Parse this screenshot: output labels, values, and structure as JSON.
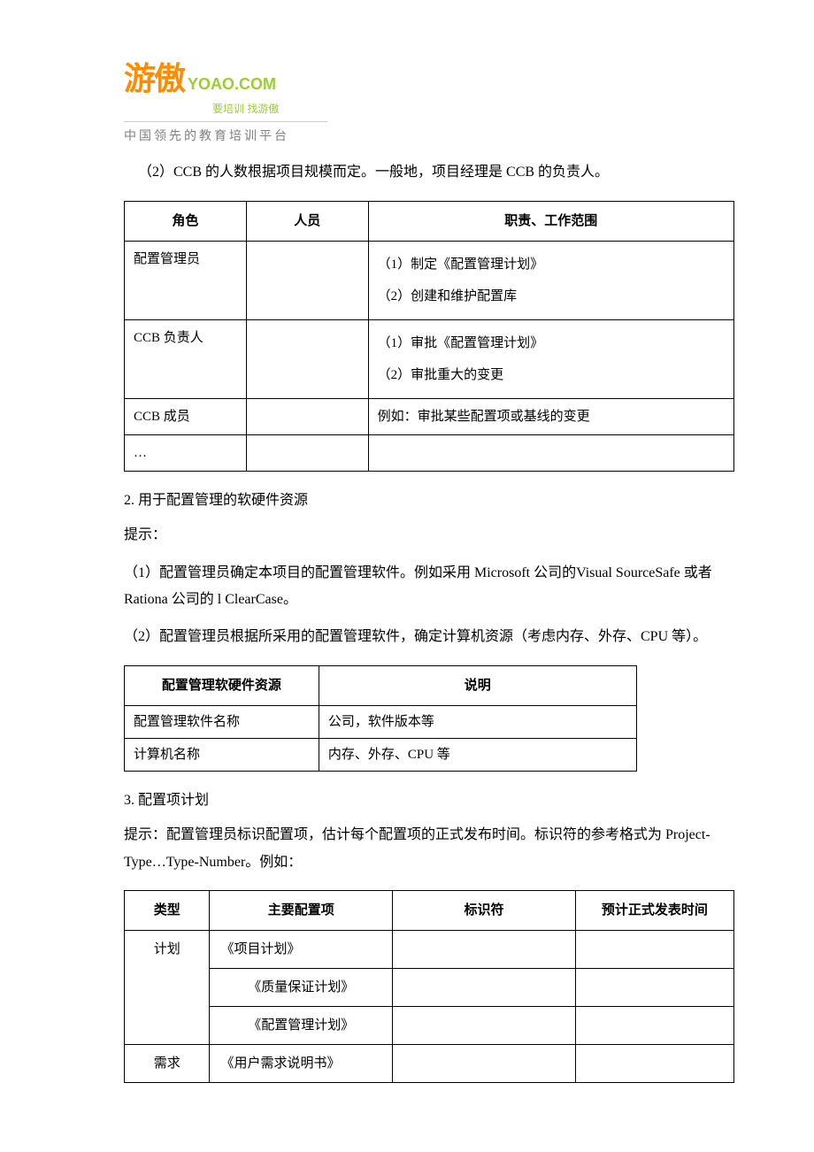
{
  "logo": {
    "brand_cn": "游傲",
    "brand_url": "YOAO.COM",
    "sub": "要培训 找游傲",
    "tagline": "中国领先的教育培训平台"
  },
  "p1": "（2）CCB 的人数根据项目规模而定。一般地，项目经理是 CCB 的负责人。",
  "table1": {
    "h1": "角色",
    "h2": "人员",
    "h3": "职责、工作范围",
    "r1c1": "配置管理员",
    "r1c3a": "（1）制定《配置管理计划》",
    "r1c3b": "（2）创建和维护配置库",
    "r2c1": "CCB 负责人",
    "r2c3a": "（1）审批《配置管理计划》",
    "r2c3b": "（2）审批重大的变更",
    "r3c1": "CCB 成员",
    "r3c3": "例如：审批某些配置项或基线的变更",
    "r4c1": "…"
  },
  "sec2": "2. 用于配置管理的软硬件资源",
  "hint": "提示：",
  "p2": "（1）配置管理员确定本项目的配置管理软件。例如采用 Microsoft 公司的Visual SourceSafe 或者 Rationa 公司的 l ClearCase。",
  "p3": "（2）配置管理员根据所采用的配置管理软件，确定计算机资源（考虑内存、外存、CPU 等）。",
  "table2": {
    "h1": "配置管理软硬件资源",
    "h2": "说明",
    "r1c1": "配置管理软件名称",
    "r1c2": "公司，软件版本等",
    "r2c1": "计算机名称",
    "r2c2": "内存、外存、CPU 等"
  },
  "sec3": "3. 配置项计划",
  "p4": "提示：配置管理员标识配置项，估计每个配置项的正式发布时间。标识符的参考格式为 Project-Type…Type-Number。例如：",
  "table3": {
    "h1": "类型",
    "h2": "主要配置项",
    "h3": "标识符",
    "h4": "预计正式发表时间",
    "r1c1": "计划",
    "r1c2": "《项目计划》",
    "r2c2": "《质量保证计划》",
    "r3c2": "《配置管理计划》",
    "r4c1": "需求",
    "r4c2": "《用户需求说明书》"
  }
}
